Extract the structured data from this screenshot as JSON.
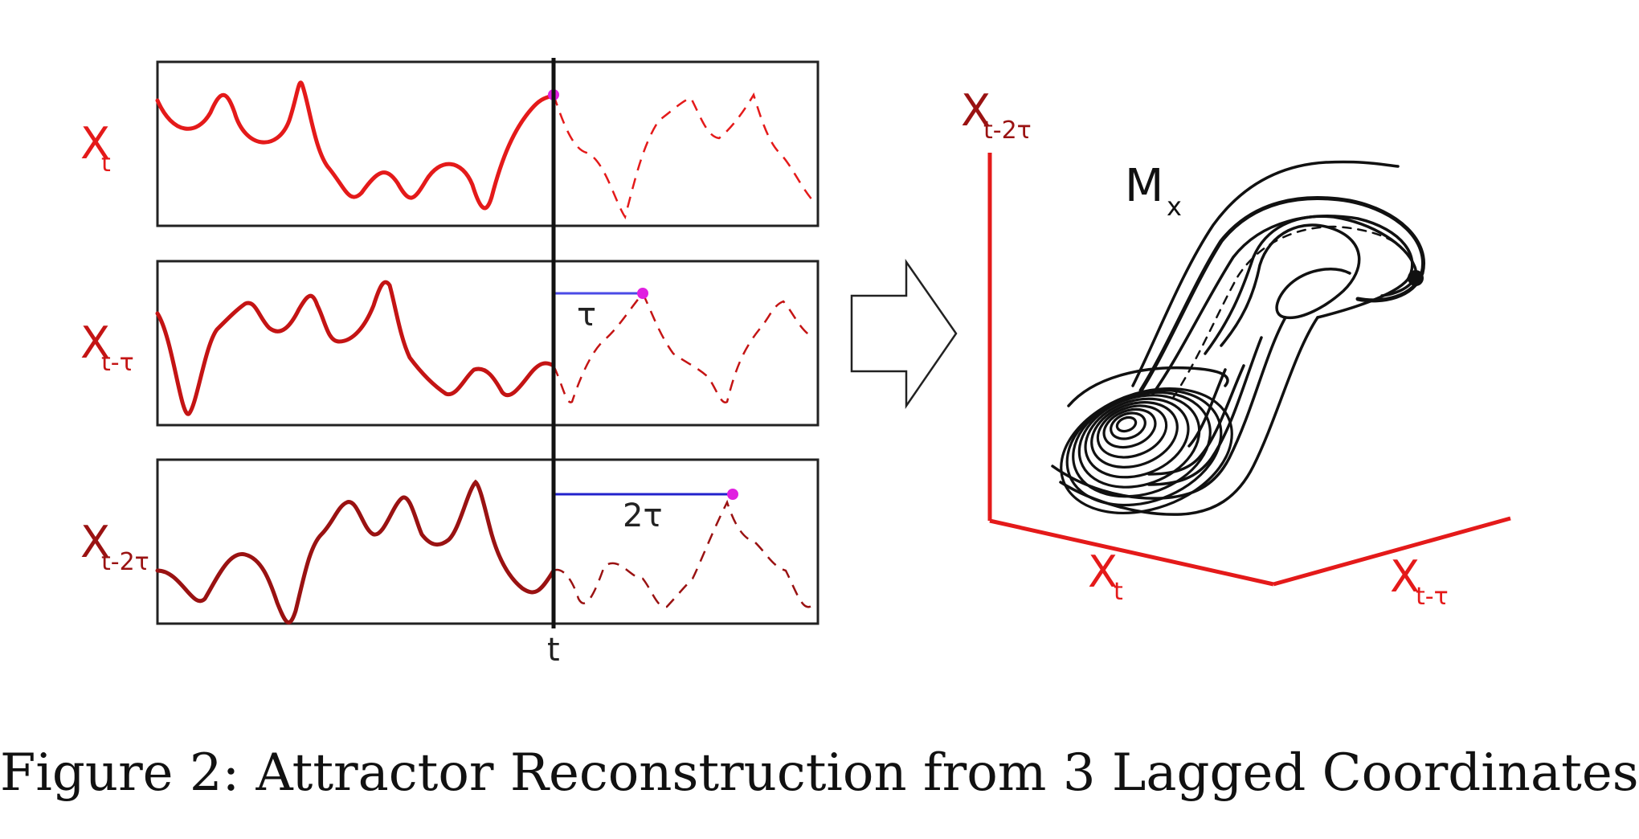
{
  "colors": {
    "series_xt": "#e41a1a",
    "series_xt_tau": "#c41414",
    "series_xt_2tau": "#9a1212",
    "axis_red": "#e41a1a",
    "lag_blue": "#4a4ae6",
    "point_magenta": "#e020e0",
    "ink": "#111111"
  },
  "panels": [
    {
      "id": "xt",
      "label_main": "X",
      "label_sub": "t"
    },
    {
      "id": "xt_tau",
      "label_main": "X",
      "label_sub": "t-τ"
    },
    {
      "id": "xt_2tau",
      "label_main": "X",
      "label_sub": "t-2τ"
    }
  ],
  "lags": {
    "tau": "τ",
    "two_tau": "2τ"
  },
  "time_label": "t",
  "arrow_icon": "right-arrow-outline",
  "attractor": {
    "label_main": "M",
    "label_sub": "x",
    "axes": {
      "vertical": {
        "main": "X",
        "sub": "t-2τ"
      },
      "left": {
        "main": "X",
        "sub": "t"
      },
      "right": {
        "main": "X",
        "sub": "t-τ"
      }
    }
  },
  "caption": "Figure 2: Attractor Reconstruction from 3 Lagged Coordinates"
}
